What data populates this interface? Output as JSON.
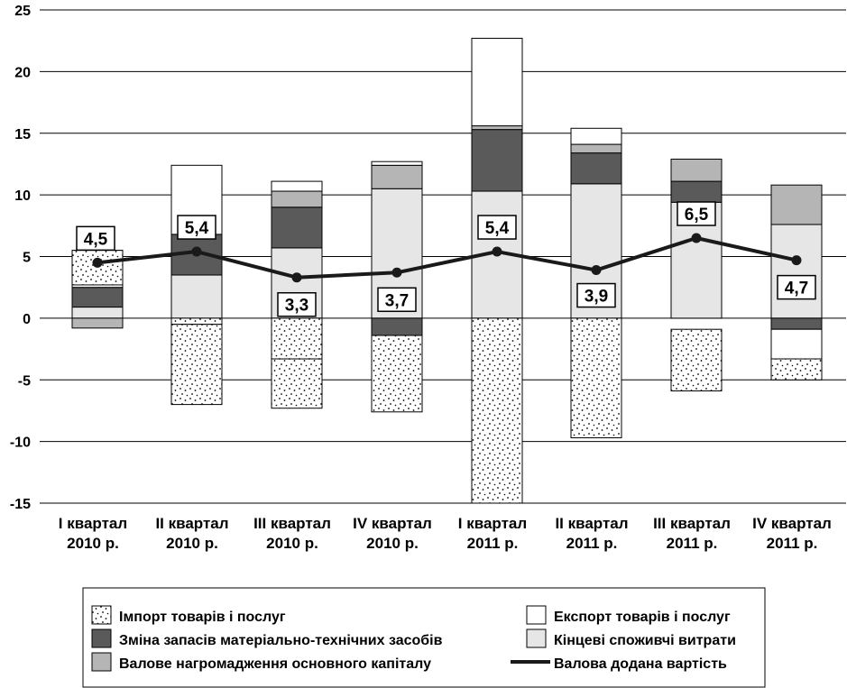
{
  "chart_data": {
    "type": "bar",
    "stacked": true,
    "categories": [
      [
        "I квартал",
        "2010 р."
      ],
      [
        "II квартал",
        "2010 р."
      ],
      [
        "III квартал",
        "2010 р."
      ],
      [
        "IV квартал",
        "2010 р."
      ],
      [
        "I квартал",
        "2011 р."
      ],
      [
        "II квартал",
        "2011 р."
      ],
      [
        "III квартал",
        "2011 р."
      ],
      [
        "IV квартал",
        "2011 р."
      ]
    ],
    "ylim": [
      -15,
      25
    ],
    "yticks": [
      25,
      20,
      15,
      10,
      5,
      0,
      -5,
      -10,
      -15
    ],
    "grid": true,
    "series": [
      {
        "name": "Кінцеві споживчі витрати",
        "color": "#e6e6e6",
        "pattern": "none",
        "values": [
          0.9,
          3.5,
          5.7,
          10.5,
          10.3,
          10.9,
          9.4,
          7.6
        ]
      },
      {
        "name": "Зміна запасів матеріально-технічних засобів",
        "color": "#5a5a5a",
        "pattern": "none",
        "values": [
          1.6,
          3.3,
          3.3,
          -1.4,
          5.0,
          2.5,
          1.7,
          -0.9
        ]
      },
      {
        "name": "Валове нагромадження основного капіталу",
        "color": "#b5b5b5",
        "pattern": "none",
        "values": [
          -0.8,
          0.0,
          1.3,
          1.9,
          0.3,
          0.7,
          1.8,
          3.2
        ]
      },
      {
        "name": "Експорт товарів і послуг",
        "color": "#ffffff",
        "pattern": "none",
        "values": [
          3.0,
          5.6,
          0.8,
          0.3,
          7.1,
          1.3,
          0.0,
          -2.4
        ]
      },
      {
        "name": "Імпорт товарів і послуг",
        "color": "#ffffff",
        "pattern": "dots",
        "segments": [
          [
            [
              0.0,
              0.0
            ]
          ],
          [
            [
              0.0,
              -0.5
            ],
            [
              -0.5,
              -7.0
            ]
          ],
          [
            [
              0.0,
              -3.3
            ],
            [
              -3.3,
              -7.3
            ]
          ],
          [
            [
              -1.4,
              -7.6
            ]
          ],
          [
            [
              0.0,
              -15.0
            ]
          ],
          [
            [
              0.0,
              -9.7
            ]
          ],
          [
            [
              -0.9,
              -5.9
            ]
          ],
          [
            [
              -3.3,
              -5.0
            ]
          ]
        ],
        "extra_top": [
          [
            2.7,
            5.5
          ],
          null,
          null,
          null,
          null,
          null,
          null,
          null
        ]
      }
    ],
    "line": {
      "name": "Валова додана вартість",
      "values": [
        4.5,
        5.4,
        3.3,
        3.7,
        5.4,
        3.9,
        6.5,
        4.7
      ],
      "labels": [
        "4,5",
        "5,4",
        "3,3",
        "3,7",
        "5,4",
        "3,9",
        "6,5",
        "4,7"
      ],
      "color": "#1a1a1a"
    }
  },
  "legend": {
    "import": "Імпорт товарів і послуг",
    "export": "Експорт товарів і послуг",
    "stocks": "Зміна запасів матеріально-технічних засобів",
    "consumption": "Кінцеві споживчі витрати",
    "capital": "Валове нагромадження основного капіталу",
    "gva": "Валова додана вартість"
  }
}
